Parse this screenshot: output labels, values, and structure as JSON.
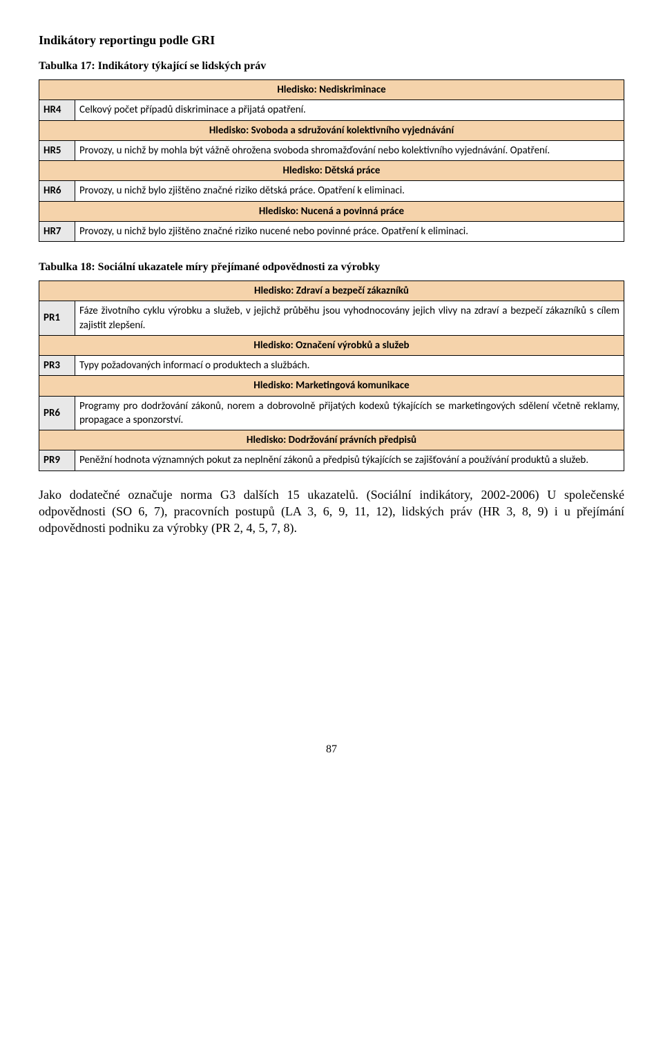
{
  "colors": {
    "header_bg": "#f5d3ab",
    "code_bg": "#e8e8e8"
  },
  "section_title": "Indikátory reportingu podle GRI",
  "table17": {
    "caption": "Tabulka 17: Indikátory týkající se lidských práv",
    "rows": [
      {
        "type": "header",
        "text": "Hledisko: Nediskriminace"
      },
      {
        "type": "data",
        "code": "HR4",
        "text": "Celkový počet případů diskriminace a přijatá opatření."
      },
      {
        "type": "header",
        "text": "Hledisko: Svoboda a sdružování kolektivního vyjednávání"
      },
      {
        "type": "data",
        "code": "HR5",
        "text": "Provozy, u nichž by mohla být vážně ohrožena svoboda shromažďování nebo kolektivního vyjednávání. Opatření."
      },
      {
        "type": "header",
        "text": "Hledisko: Dětská práce"
      },
      {
        "type": "data",
        "code": "HR6",
        "text": "Provozy, u nichž bylo zjištěno značné riziko dětská práce. Opatření k eliminaci."
      },
      {
        "type": "header",
        "text": "Hledisko: Nucená a povinná práce"
      },
      {
        "type": "data",
        "code": "HR7",
        "text": "Provozy, u nichž bylo zjištěno značné riziko nucené nebo povinné práce. Opatření k eliminaci."
      }
    ]
  },
  "table18": {
    "caption": "Tabulka 18: Sociální ukazatele míry přejímané odpovědnosti za výrobky",
    "rows": [
      {
        "type": "header",
        "text": "Hledisko: Zdraví a bezpečí zákazníků"
      },
      {
        "type": "data",
        "code": "PR1",
        "text": "Fáze životního cyklu výrobku a služeb, v jejichž průběhu jsou vyhodnocovány jejich vlivy na zdraví a bezpečí zákazníků s cílem zajistit zlepšení."
      },
      {
        "type": "header",
        "text": "Hledisko: Označení výrobků a služeb"
      },
      {
        "type": "data",
        "code": "PR3",
        "text": "Typy požadovaných informací o produktech a službách."
      },
      {
        "type": "header",
        "text": "Hledisko: Marketingová komunikace"
      },
      {
        "type": "data",
        "code": "PR6",
        "text": "Programy pro dodržování zákonů, norem a dobrovolně přijatých kodexů týkajících se marketingových sdělení včetně reklamy, propagace a sponzorství."
      },
      {
        "type": "header",
        "text": "Hledisko: Dodržování právních předpisů"
      },
      {
        "type": "data",
        "code": "PR9",
        "text": "Peněžní hodnota významných pokut za neplnění zákonů a předpisů týkajících se zajišťování a používání produktů a služeb."
      }
    ]
  },
  "paragraph": "Jako dodatečné označuje norma G3 dalších 15 ukazatelů. (Sociální indikátory, 2002-2006) U společenské odpovědnosti (SO 6, 7), pracovních postupů (LA 3, 6, 9, 11, 12), lidských práv (HR 3, 8, 9) i u přejímání odpovědnosti podniku za výrobky (PR 2, 4, 5, 7, 8).",
  "page_number": "87"
}
